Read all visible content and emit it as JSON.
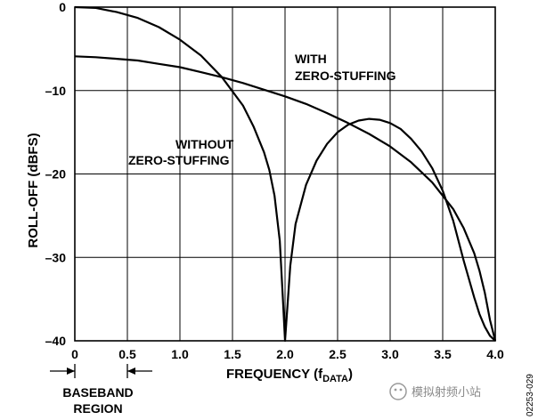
{
  "chart_data": {
    "type": "line",
    "xlabel": "FREQUENCY (f",
    "xlabel_sub": "DATA",
    "xlabel_close": ")",
    "ylabel": "ROLL-OFF (dBFS)",
    "xlim": [
      0,
      4.0
    ],
    "ylim": [
      -40,
      0
    ],
    "x_ticks": [
      "0",
      "0.5",
      "1.0",
      "1.5",
      "2.0",
      "2.5",
      "3.0",
      "3.5",
      "4.0"
    ],
    "y_ticks": [
      "0",
      "–10",
      "–20",
      "–30",
      "–40"
    ],
    "grid": true,
    "series": [
      {
        "annotation": [
          "WITHOUT",
          "ZERO-STUFFING"
        ],
        "x": [
          0.0,
          0.2,
          0.4,
          0.6,
          0.8,
          1.0,
          1.2,
          1.4,
          1.6,
          1.7,
          1.8,
          1.85,
          1.9,
          1.95,
          1.98,
          2.0,
          2.05,
          2.1,
          2.2,
          2.3,
          2.4,
          2.5,
          2.6,
          2.7,
          2.8,
          2.9,
          3.0,
          3.1,
          3.2,
          3.3,
          3.4,
          3.5,
          3.6,
          3.7,
          3.8,
          3.85,
          3.9,
          3.95,
          4.0
        ],
        "y": [
          0.0,
          -0.1,
          -0.6,
          -1.3,
          -2.4,
          -3.9,
          -5.8,
          -8.4,
          -11.8,
          -14.3,
          -17.4,
          -19.5,
          -22.6,
          -28.0,
          -35.0,
          -40.0,
          -31.0,
          -26.0,
          -21.3,
          -18.4,
          -16.4,
          -15.0,
          -14.1,
          -13.6,
          -13.4,
          -13.5,
          -13.9,
          -14.6,
          -15.8,
          -17.3,
          -19.3,
          -22.0,
          -25.6,
          -30.4,
          -34.8,
          -36.8,
          -38.3,
          -39.4,
          -40.0
        ],
        "color": "#000000"
      },
      {
        "annotation": [
          "WITH",
          "ZERO-STUFFING"
        ],
        "x": [
          0.0,
          0.2,
          0.4,
          0.6,
          0.8,
          1.0,
          1.2,
          1.4,
          1.6,
          1.8,
          2.0,
          2.2,
          2.4,
          2.6,
          2.8,
          3.0,
          3.2,
          3.4,
          3.6,
          3.7,
          3.8,
          3.85,
          3.9,
          3.95,
          4.0
        ],
        "y": [
          -5.9,
          -6.0,
          -6.2,
          -6.4,
          -6.8,
          -7.2,
          -7.8,
          -8.4,
          -9.1,
          -9.9,
          -10.7,
          -11.6,
          -12.7,
          -13.9,
          -15.2,
          -16.7,
          -18.6,
          -21.0,
          -24.2,
          -26.5,
          -29.5,
          -31.6,
          -34.2,
          -37.5,
          -40.0
        ],
        "color": "#000000"
      }
    ],
    "bracket_labels": [
      "BASEBAND",
      "REGION"
    ],
    "bracket_range": [
      0,
      0.5
    ]
  },
  "figure_id": "02253-029",
  "watermark_text": "模拟射频小站"
}
